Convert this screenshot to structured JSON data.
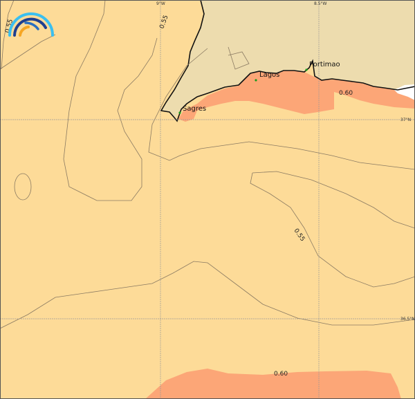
{
  "colors": {
    "sea": "#fddb98",
    "land": "#eddcae",
    "high_band": "#fca677",
    "no_data": "#ffffff",
    "contour": "#8a7a62",
    "coast": "#111111",
    "city_dot": "#1a9a1a"
  },
  "logo": {
    "icon": "rainbow-arcs-logo"
  },
  "graticule": {
    "lon_labels": [
      "9°W",
      "8.5°W"
    ],
    "lat_labels": [
      "37°N",
      "36.5°N"
    ]
  },
  "contours": {
    "labels": [
      "0.55",
      "0.55",
      "0.55",
      "0.60",
      "0.60"
    ]
  },
  "cities": [
    {
      "name": "Sagres"
    },
    {
      "name": "Lagos"
    },
    {
      "name": "Portimao"
    }
  ]
}
